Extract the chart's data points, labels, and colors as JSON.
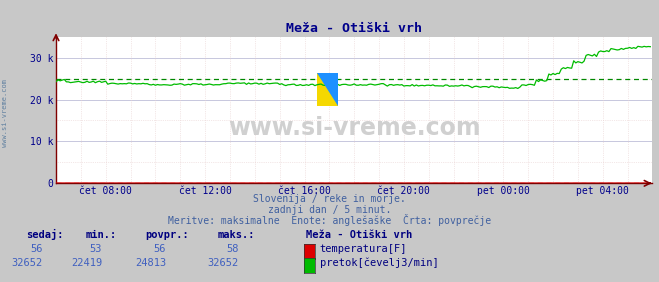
{
  "title": "Meža - Otiški vrh",
  "bg_color": "#c8c8c8",
  "plot_bg_color": "#ffffff",
  "title_color": "#00008b",
  "axis_color": "#800000",
  "tick_label_color": "#00008b",
  "watermark": "www.si-vreme.com",
  "watermark_color": "#d0d0d0",
  "side_label": "www.si-vreme.com",
  "side_label_color": "#6080a0",
  "subtitle_line1": "Slovenija / reke in morje.",
  "subtitle_line2": "zadnji dan / 5 minut.",
  "subtitle_line3": "Meritve: maksimalne  Enote: anglešaške  Črta: povprečje",
  "subtitle_color": "#4060a0",
  "xlim": [
    0,
    288
  ],
  "ylim": [
    0,
    35000
  ],
  "ytick_vals": [
    0,
    10000,
    20000,
    30000
  ],
  "ytick_labels": [
    "0",
    "10 k",
    "20 k",
    "30 k"
  ],
  "xtick_positions": [
    24,
    72,
    120,
    168,
    216,
    264
  ],
  "xtick_labels": [
    "čet 08:00",
    "čet 12:00",
    "čet 16:00",
    "čet 20:00",
    "pet 00:00",
    "pet 04:00"
  ],
  "major_grid_color": "#b0b0d0",
  "minor_grid_color": "#e8d0d0",
  "major_vgrid_color": "#e8d0d0",
  "temp_color": "#dd0000",
  "flow_color": "#00bb00",
  "avg_flow_color": "#008800",
  "avg_temp_color": "#dd0000",
  "avg_flow_y": 24813,
  "avg_temp_y": 56,
  "temp_value": 56,
  "temp_min": 53,
  "temp_avg": 56,
  "temp_max": 58,
  "flow_value": 32652,
  "flow_min": 22419,
  "flow_avg": 24813,
  "flow_max": 32652,
  "legend_title": "Meža - Otiški vrh",
  "label_temp": "temperatura[F]",
  "label_flow": "pretok[čevelj3/min]",
  "header_color": "#000080",
  "value_color": "#4060c0",
  "n_points": 288
}
